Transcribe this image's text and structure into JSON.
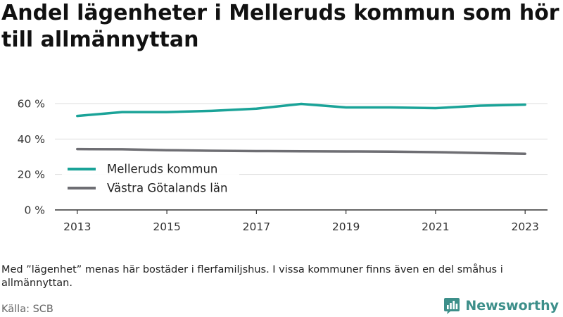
{
  "title": "Andel lägenheter i Melleruds kommun som hör till allmännyttan",
  "note": "Med ”lägenhet” menas här bostäder i flerfamiljshus. I vissa kommuner finns även en del småhus i allmännyttan.",
  "source": "Källa: SCB",
  "brand": {
    "name": "Newsworthy",
    "icon": "newsworthy-logo-icon",
    "color": "#3d8f8a"
  },
  "chart_data": {
    "type": "line",
    "title": "Andel lägenheter i Melleruds kommun som hör till allmännyttan",
    "xlabel": "",
    "ylabel": "",
    "x": [
      2013,
      2014,
      2015,
      2016,
      2017,
      2018,
      2019,
      2020,
      2021,
      2022,
      2023
    ],
    "x_ticks": [
      "2013",
      "2015",
      "2017",
      "2019",
      "2021",
      "2023"
    ],
    "ylim": [
      0,
      60
    ],
    "y_ticks": [
      "0 %",
      "20 %",
      "40 %",
      "60 %"
    ],
    "grid": "horizontal",
    "legend_placement": "bottom-left",
    "series": [
      {
        "name": "Melleruds kommun",
        "color": "#1aa398",
        "values": [
          53.0,
          55.2,
          55.2,
          55.9,
          57.1,
          59.8,
          57.8,
          57.8,
          57.4,
          58.8,
          59.4
        ]
      },
      {
        "name": "Västra Götalands län",
        "color": "#6e6e73",
        "values": [
          34.3,
          34.2,
          33.7,
          33.4,
          33.2,
          33.1,
          33.0,
          32.9,
          32.6,
          32.1,
          31.7
        ]
      }
    ]
  }
}
